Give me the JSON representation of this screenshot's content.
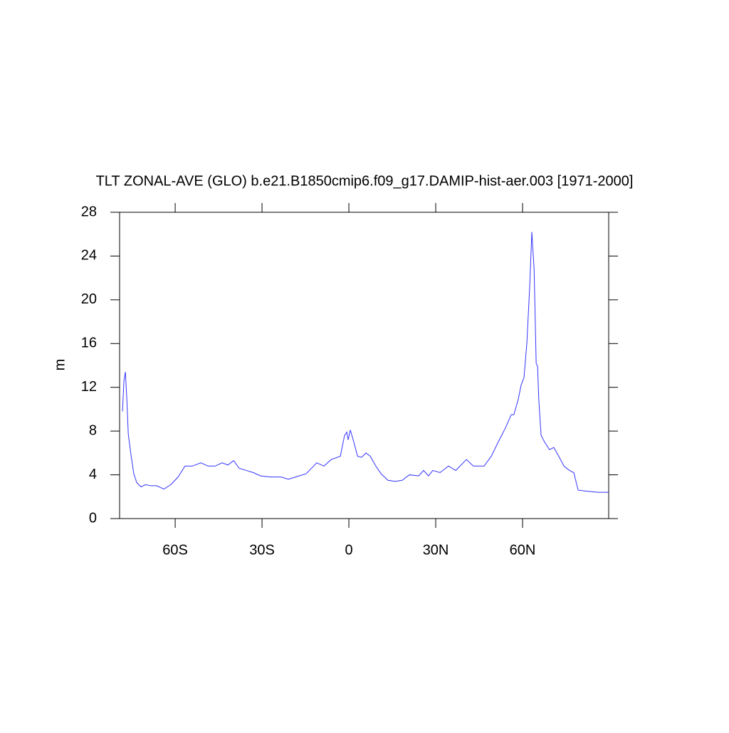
{
  "chart_data": {
    "type": "line",
    "title": "TLT ZONAL-AVE (GLO) b.e21.B1850cmip6.f09_g17.DAMIP-hist-aer.003 [1971-2000]",
    "y_label": "m",
    "x": [
      -78.2,
      -77.7,
      -77.2,
      -76.7,
      -76.2,
      -75.2,
      -74.3,
      -73.3,
      -71.8,
      -70.3,
      -68.4,
      -66.4,
      -63.9,
      -61.5,
      -59.0,
      -56.6,
      -54.1,
      -51.1,
      -48.7,
      -46.2,
      -43.8,
      -41.8,
      -39.8,
      -37.9,
      -35.4,
      -33.0,
      -30.5,
      -27.0,
      -23.4,
      -20.9,
      -18.4,
      -14.8,
      -11.1,
      -8.6,
      -6.1,
      -2.95,
      -1.5,
      -0.7,
      -0.25,
      0.5,
      1.7,
      3.0,
      4.4,
      5.9,
      7.4,
      9.3,
      11.1,
      13.5,
      16.0,
      18.4,
      20.9,
      24.1,
      25.8,
      27.5,
      29.0,
      31.5,
      34.4,
      36.9,
      40.6,
      43.0,
      46.7,
      49.2,
      51.6,
      54.1,
      56.1,
      57.0,
      58.5,
      59.5,
      60.5,
      61.5,
      62.5,
      63.2,
      64.0,
      64.7,
      65.2,
      65.6,
      66.4,
      67.6,
      69.3,
      70.8,
      72.5,
      74.3,
      76.2,
      77.7,
      79.2,
      82.4,
      86.1,
      89.75
    ],
    "series": [
      {
        "name": "TLT",
        "color": "#3333ff",
        "values": [
          9.8,
          12.6,
          13.4,
          10.9,
          7.7,
          5.7,
          4.1,
          3.3,
          2.9,
          3.1,
          3.0,
          3.0,
          2.7,
          3.1,
          3.8,
          4.8,
          4.8,
          5.1,
          4.8,
          4.8,
          5.1,
          4.9,
          5.3,
          4.6,
          4.4,
          4.2,
          3.9,
          3.8,
          3.8,
          3.6,
          3.8,
          4.1,
          5.1,
          4.8,
          5.4,
          5.7,
          7.6,
          7.9,
          7.2,
          8.1,
          7.0,
          5.7,
          5.6,
          6.0,
          5.7,
          4.8,
          4.1,
          3.5,
          3.4,
          3.5,
          4.0,
          3.9,
          4.4,
          3.9,
          4.4,
          4.2,
          4.8,
          4.4,
          5.4,
          4.8,
          4.8,
          5.7,
          7.0,
          8.3,
          9.5,
          9.5,
          10.9,
          12.2,
          12.9,
          16.1,
          21.4,
          26.2,
          22.7,
          14.2,
          13.9,
          10.9,
          7.6,
          7.0,
          6.3,
          6.5,
          5.7,
          4.8,
          4.4,
          4.2,
          2.6,
          2.5,
          2.4,
          2.4
        ]
      }
    ],
    "xlim": [
      -79.2,
      89.75
    ],
    "xticks": [
      {
        "value": -60,
        "label": "60S"
      },
      {
        "value": -30,
        "label": "30S"
      },
      0,
      {
        "value": 30,
        "label": "30N"
      },
      {
        "value": 60,
        "label": "60N"
      }
    ],
    "ylim": [
      0,
      28
    ],
    "yticks": [
      0,
      4,
      8,
      12,
      16,
      20,
      24,
      28
    ]
  }
}
